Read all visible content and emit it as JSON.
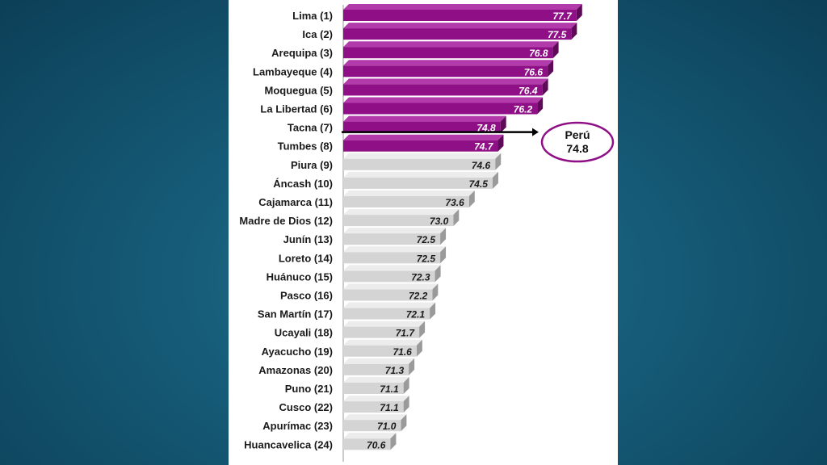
{
  "colors": {
    "highlight_front": "#8e0f86",
    "highlight_top": "#b23aab",
    "highlight_side": "#5e0a58",
    "normal_front": "#d4d4d4",
    "normal_top": "#ececec",
    "normal_side": "#9a9a9a",
    "highlight_label": "#ffffff",
    "normal_label": "#1a1a1a",
    "reference_ellipse": "#8e0f86"
  },
  "chart_data": {
    "type": "bar",
    "orientation": "horizontal",
    "categories": [
      "Lima (1)",
      "Ica (2)",
      "Arequipa (3)",
      "Lambayeque (4)",
      "Moquegua (5)",
      "La Libertad (6)",
      "Tacna (7)",
      "Tumbes (8)",
      "Piura (9)",
      "Áncash (10)",
      "Cajamarca (11)",
      "Madre de Dios (12)",
      "Junín (13)",
      "Loreto (14)",
      "Huánuco (15)",
      "Pasco (16)",
      "San Martín (17)",
      "Ucayali (18)",
      "Ayacucho (19)",
      "Amazonas (20)",
      "Puno (21)",
      "Cusco (22)",
      "Apurímac (23)",
      "Huancavelica (24)"
    ],
    "values": [
      77.7,
      77.5,
      76.8,
      76.6,
      76.4,
      76.2,
      74.8,
      74.7,
      74.6,
      74.5,
      73.6,
      73.0,
      72.5,
      72.5,
      72.3,
      72.2,
      72.1,
      71.7,
      71.6,
      71.3,
      71.1,
      71.1,
      71.0,
      70.6
    ],
    "value_labels": [
      "77.7",
      "77.5",
      "76.8",
      "76.6",
      "76.4",
      "76.2",
      "74.8",
      "74.7",
      "74.6",
      "74.5",
      "73.6",
      "73.0",
      "72.5",
      "72.5",
      "72.3",
      "72.2",
      "72.1",
      "71.7",
      "71.6",
      "71.3",
      "71.1",
      "71.1",
      "71.0",
      "70.6"
    ],
    "highlighted_count": 8,
    "xlim": [
      68.8,
      78.0
    ],
    "grid": false,
    "reference": {
      "name": "Perú",
      "value": 74.8,
      "label": "74.8"
    }
  }
}
